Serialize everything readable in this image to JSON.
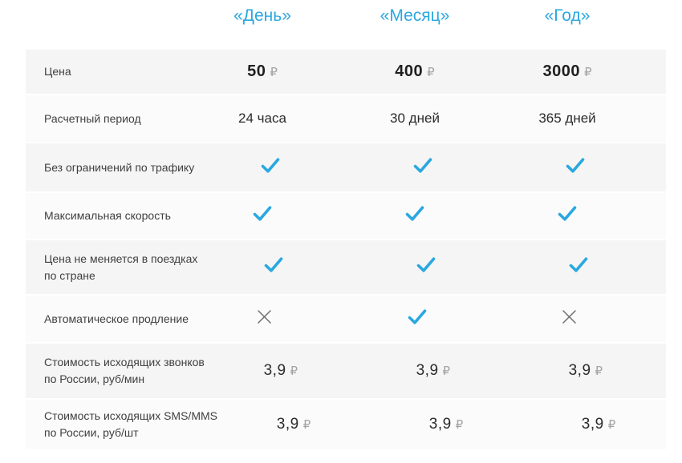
{
  "accent_blue": "#2aa8e0",
  "cross_gray": "#6e6e6e",
  "plans": {
    "day": "«День»",
    "month": "«Месяц»",
    "year": "«Год»"
  },
  "rows": [
    {
      "label": "Цена",
      "type": "price",
      "values": [
        {
          "num": "50",
          "cur": "₽"
        },
        {
          "num": "400",
          "cur": "₽"
        },
        {
          "num": "3000",
          "cur": "₽"
        }
      ]
    },
    {
      "label": "Расчетный период",
      "type": "text",
      "values": [
        "24 часа",
        "30 дней",
        "365 дней"
      ]
    },
    {
      "label": "Без ограничений по трафику",
      "type": "icon",
      "values": [
        "check",
        "check",
        "check"
      ]
    },
    {
      "label": "Максимальная скорость",
      "type": "icon",
      "values": [
        "check",
        "check",
        "check"
      ]
    },
    {
      "label": "Цена не меняется в поездках\nпо стране",
      "type": "icon",
      "values": [
        "check",
        "check",
        "check"
      ]
    },
    {
      "label": "Автоматическое продление",
      "type": "icon",
      "values": [
        "cross",
        "check",
        "cross"
      ]
    },
    {
      "label": "Стоимость исходящих звонков\nпо России, руб/мин",
      "type": "rate",
      "values": [
        {
          "num": "3,9",
          "cur": "₽"
        },
        {
          "num": "3,9",
          "cur": "₽"
        },
        {
          "num": "3,9",
          "cur": "₽"
        }
      ]
    },
    {
      "label": "Стоимость исходящих SMS/MMS\nпо России, руб/шт",
      "type": "rate",
      "values": [
        {
          "num": "3,9",
          "cur": "₽"
        },
        {
          "num": "3,9",
          "cur": "₽"
        },
        {
          "num": "3,9",
          "cur": "₽"
        }
      ]
    }
  ]
}
